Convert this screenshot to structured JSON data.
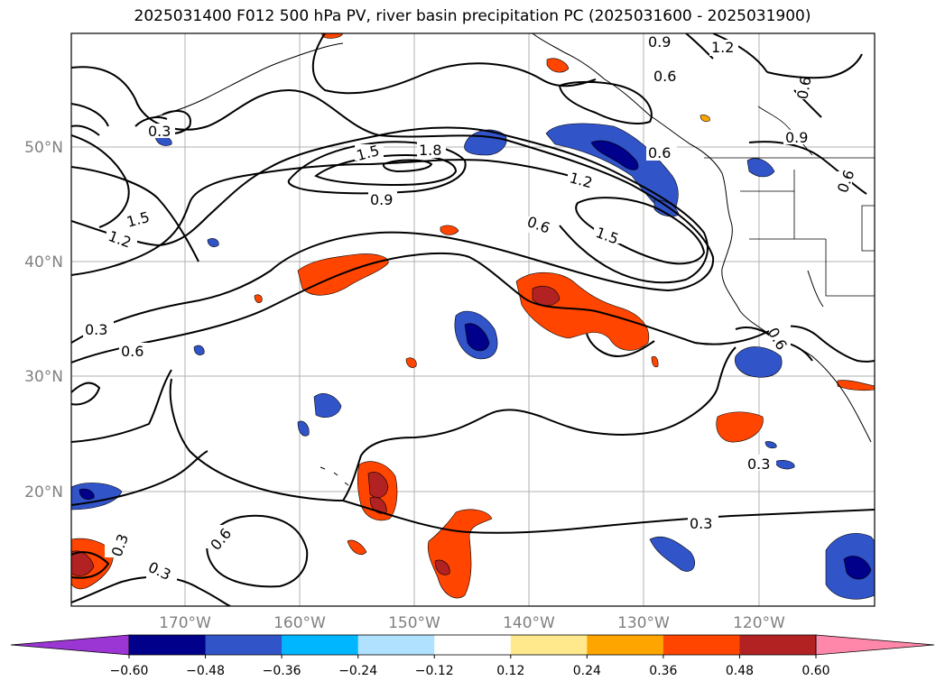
{
  "title": "2025031400 F012 500 hPa PV, river basin precipitation PC (2025031600 - 2025031900)",
  "lat_labels": [
    "50°N",
    "40°N",
    "30°N",
    "20°N"
  ],
  "lon_labels": [
    "170°W",
    "160°W",
    "150°W",
    "140°W",
    "130°W",
    "120°W"
  ],
  "contour_labels": [
    "0.9",
    "1.2",
    "0.6",
    "0.6",
    "0.3",
    "0.9",
    "0.6",
    "0.6",
    "1.5",
    "1.8",
    "1.2",
    "0.9",
    "0.6",
    "1.5",
    "1.5",
    "1.2",
    "0.3",
    "0.6",
    "0.6",
    "0.3",
    "0.3",
    "0.6",
    "0.3",
    "0.3"
  ],
  "colorbar": {
    "ticks": [
      "−0.60",
      "−0.48",
      "−0.36",
      "−0.24",
      "−0.12",
      "0.12",
      "0.24",
      "0.36",
      "0.48",
      "0.60"
    ],
    "colors": [
      "#9b35d3",
      "#00008b",
      "#3154c8",
      "#00b7ff",
      "#b0e2ff",
      "#ffffff",
      "#ffe98c",
      "#ffa500",
      "#ff4500",
      "#b22222",
      "#ff88aa"
    ]
  }
}
